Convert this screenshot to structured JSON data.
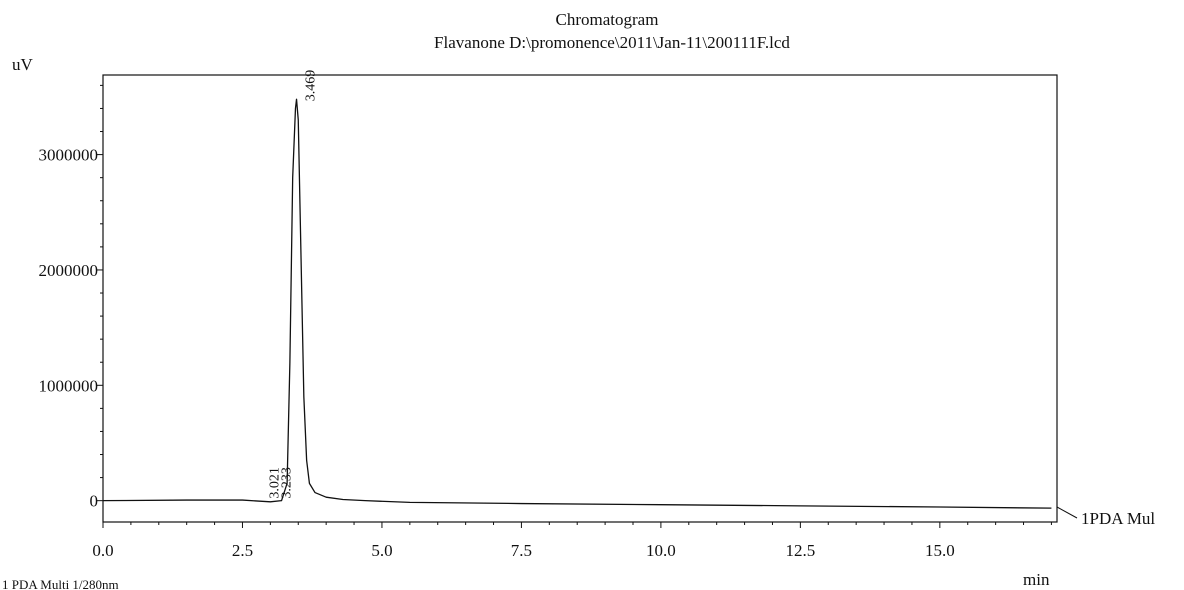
{
  "chart_data": {
    "type": "line",
    "title": "Chromatogram",
    "subtitle": "Flavanone D:\\promonence\\2011\\Jan-11\\200111F.lcd",
    "xlabel": "min",
    "ylabel": "uV",
    "xlim": [
      0.0,
      17.1
    ],
    "ylim": [
      -185000,
      3690000
    ],
    "grid": false,
    "x_ticks": [
      0.0,
      2.5,
      5.0,
      7.5,
      10.0,
      12.5,
      15.0
    ],
    "x_tick_labels": [
      "0.0",
      "2.5",
      "5.0",
      "7.5",
      "10.0",
      "12.5",
      "15.0"
    ],
    "y_ticks": [
      0,
      1000000,
      2000000,
      3000000
    ],
    "y_tick_labels": [
      "0",
      "1000000",
      "2000000",
      "3000000"
    ],
    "series": [
      {
        "name": "1PDA Mul",
        "x": [
          0.0,
          1.5,
          2.5,
          3.0,
          3.2,
          3.3,
          3.35,
          3.4,
          3.45,
          3.469,
          3.5,
          3.55,
          3.6,
          3.65,
          3.7,
          3.8,
          4.0,
          4.3,
          4.7,
          5.5,
          7.5,
          10.0,
          12.5,
          15.0,
          17.0
        ],
        "y": [
          0,
          5000,
          5000,
          -10000,
          0,
          150000,
          1200000,
          2800000,
          3400000,
          3480000,
          3300000,
          2100000,
          900000,
          350000,
          150000,
          70000,
          30000,
          10000,
          0,
          -15000,
          -25000,
          -35000,
          -45000,
          -55000,
          -65000
        ]
      }
    ],
    "peak_labels": [
      "3.469",
      "3.233",
      "3.021"
    ],
    "footer": "1 PDA Multi 1/280nm"
  }
}
